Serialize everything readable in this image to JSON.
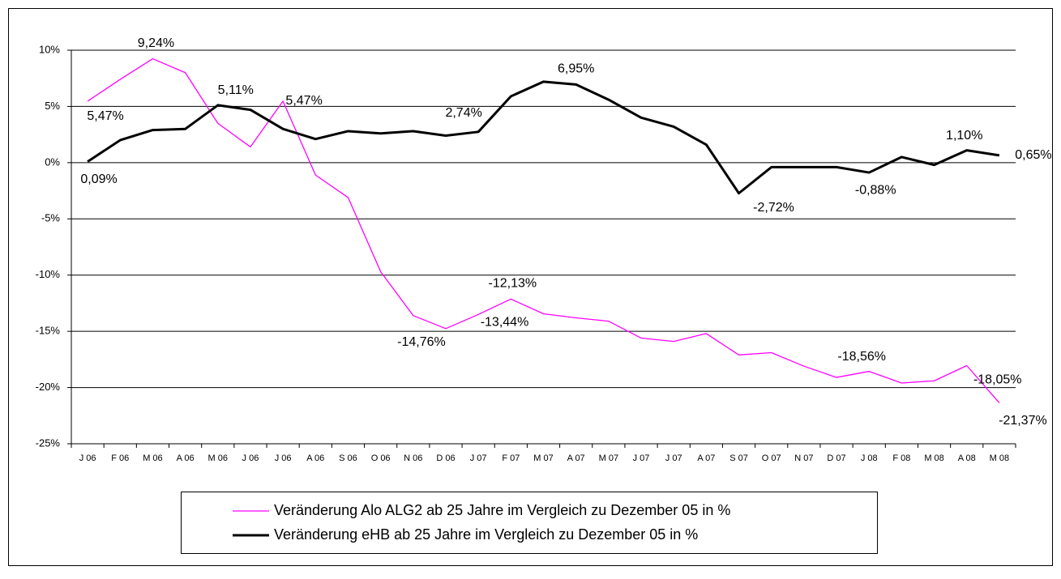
{
  "chart_data": {
    "type": "line",
    "categories": [
      "J 06",
      "F 06",
      "M 06",
      "A 06",
      "M 06",
      "J 06",
      "J 06",
      "A 06",
      "S 06",
      "O 06",
      "N 06",
      "D 06",
      "J 07",
      "F 07",
      "M 07",
      "A 07",
      "M 07",
      "J 07",
      "J 07",
      "A 07",
      "S 07",
      "O 07",
      "N 07",
      "D 07",
      "J 08",
      "F 08",
      "M 08",
      "A 08",
      "M 08"
    ],
    "series": [
      {
        "name": "Veränderung Alo ALG2 ab 25 Jahre im Vergleich zu Dezember 05 in %",
        "color": "#ff00ff",
        "values": [
          5.47,
          7.4,
          9.24,
          8.0,
          3.5,
          1.4,
          5.47,
          -1.1,
          -3.1,
          -9.7,
          -13.6,
          -14.76,
          -13.5,
          -12.13,
          -13.44,
          -13.8,
          -14.1,
          -15.6,
          -15.9,
          -15.2,
          -17.1,
          -16.9,
          -18.1,
          -19.1,
          -18.56,
          -19.6,
          -19.4,
          -18.05,
          -21.37
        ],
        "value_labels": [
          "5,47%",
          null,
          "9,24%",
          null,
          null,
          null,
          "5,47%",
          null,
          null,
          null,
          null,
          "-14,76%",
          null,
          "-12,13%",
          "-13,44%",
          null,
          null,
          null,
          null,
          null,
          null,
          null,
          null,
          null,
          "-18,56%",
          null,
          null,
          "-18,05%",
          "-21,37%"
        ]
      },
      {
        "name": "Veränderung eHB ab 25 Jahre im Vergleich zu Dezember 05 in %",
        "color": "#000000",
        "values": [
          0.09,
          2.0,
          2.9,
          3.0,
          5.11,
          4.7,
          3.0,
          2.1,
          2.8,
          2.6,
          2.8,
          2.4,
          2.74,
          5.9,
          7.2,
          6.95,
          5.6,
          4.0,
          3.2,
          1.6,
          -2.72,
          -0.4,
          -0.4,
          -0.4,
          -0.88,
          0.5,
          -0.2,
          1.1,
          0.65
        ],
        "value_labels": [
          "0,09%",
          null,
          null,
          null,
          "5,11%",
          null,
          null,
          null,
          null,
          null,
          null,
          null,
          "2,74%",
          null,
          null,
          "6,95%",
          null,
          null,
          null,
          null,
          "-2,72%",
          null,
          null,
          null,
          "-0,88%",
          null,
          null,
          "1,10%",
          "0,65%"
        ]
      }
    ],
    "ylim": [
      -25,
      10
    ],
    "yticks": [
      {
        "value": -25,
        "label": "-25%"
      },
      {
        "value": -20,
        "label": "-20%"
      },
      {
        "value": -15,
        "label": "-15%"
      },
      {
        "value": -10,
        "label": "-10%"
      },
      {
        "value": -5,
        "label": "-5%"
      },
      {
        "value": 0,
        "label": "0%"
      },
      {
        "value": 5,
        "label": "5%"
      },
      {
        "value": 10,
        "label": "10%"
      }
    ],
    "grid": true
  }
}
